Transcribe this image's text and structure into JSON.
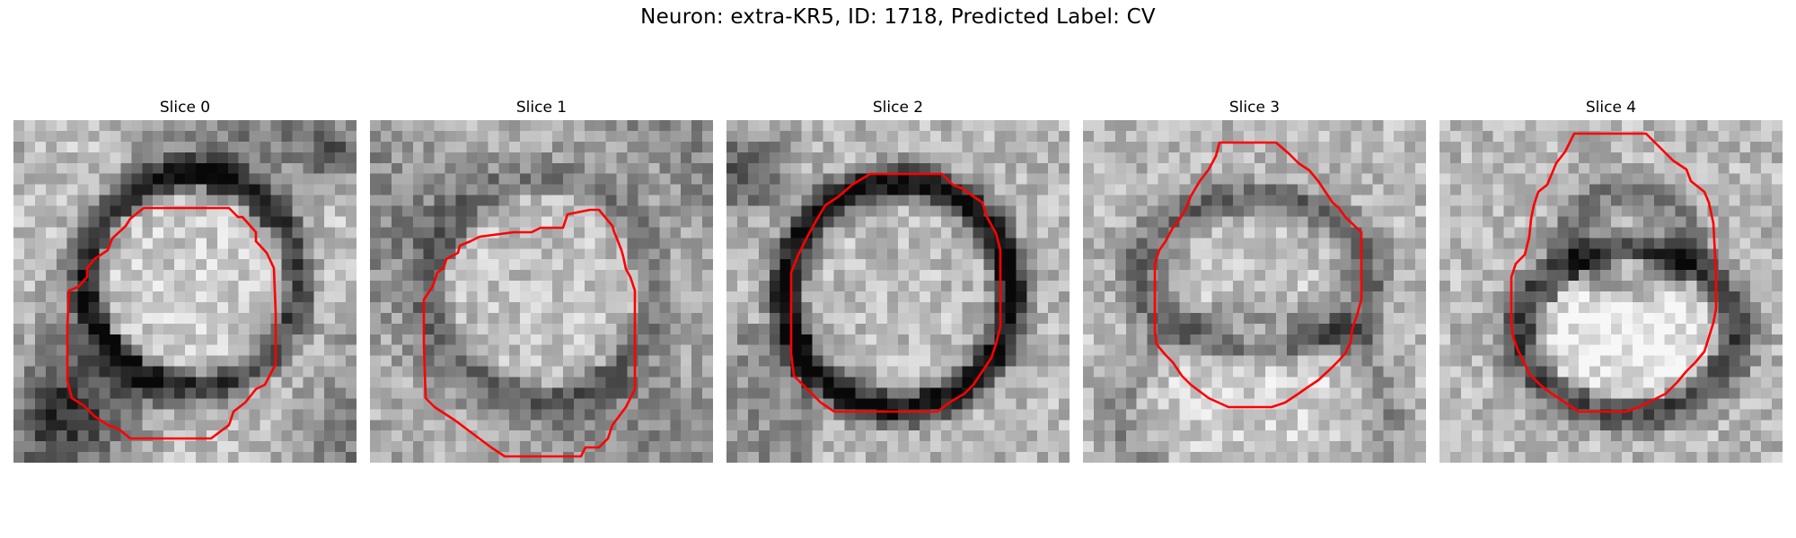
{
  "figure": {
    "title": "Neuron: extra-KR5, ID: 1718, Predicted Label: CV"
  },
  "panels": [
    {
      "title": "Slice 0"
    },
    {
      "title": "Slice 1"
    },
    {
      "title": "Slice 2"
    },
    {
      "title": "Slice 3"
    },
    {
      "title": "Slice 4"
    }
  ],
  "colors": {
    "contour": "#ff0000",
    "background": "#ffffff"
  }
}
